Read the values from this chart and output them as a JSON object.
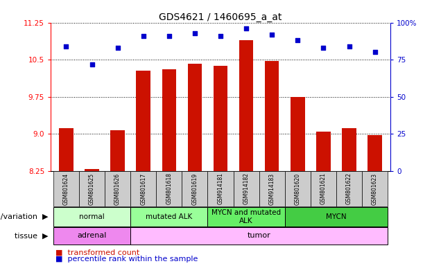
{
  "title": "GDS4621 / 1460695_a_at",
  "samples": [
    "GSM801624",
    "GSM801625",
    "GSM801626",
    "GSM801617",
    "GSM801618",
    "GSM801619",
    "GSM914181",
    "GSM914182",
    "GSM914183",
    "GSM801620",
    "GSM801621",
    "GSM801622",
    "GSM801623"
  ],
  "red_values": [
    9.12,
    8.28,
    9.07,
    10.28,
    10.3,
    10.42,
    10.37,
    10.9,
    10.47,
    9.74,
    9.04,
    9.12,
    8.97
  ],
  "blue_values": [
    84,
    72,
    83,
    91,
    91,
    93,
    91,
    96,
    92,
    88,
    83,
    84,
    80
  ],
  "y_min": 8.25,
  "y_max": 11.25,
  "y_ticks_red": [
    8.25,
    9.0,
    9.75,
    10.5,
    11.25
  ],
  "y_ticks_blue": [
    0,
    25,
    50,
    75,
    100
  ],
  "genotype_groups": [
    {
      "label": "normal",
      "start": 0,
      "end": 3,
      "color": "#ccffcc"
    },
    {
      "label": "mutated ALK",
      "start": 3,
      "end": 6,
      "color": "#99ff99"
    },
    {
      "label": "MYCN and mutated\nALK",
      "start": 6,
      "end": 9,
      "color": "#66ee66"
    },
    {
      "label": "MYCN",
      "start": 9,
      "end": 13,
      "color": "#44cc44"
    }
  ],
  "tissue_groups": [
    {
      "label": "adrenal",
      "start": 0,
      "end": 3,
      "color": "#ee88ee"
    },
    {
      "label": "tumor",
      "start": 3,
      "end": 13,
      "color": "#ffbbff"
    }
  ],
  "bar_color": "#cc1100",
  "dot_color": "#0000cc",
  "title_fontsize": 10,
  "tick_fontsize": 7.5,
  "label_fontsize": 8,
  "legend_fontsize": 8,
  "sample_fontsize": 5.5,
  "arrow_fontsize": 8
}
